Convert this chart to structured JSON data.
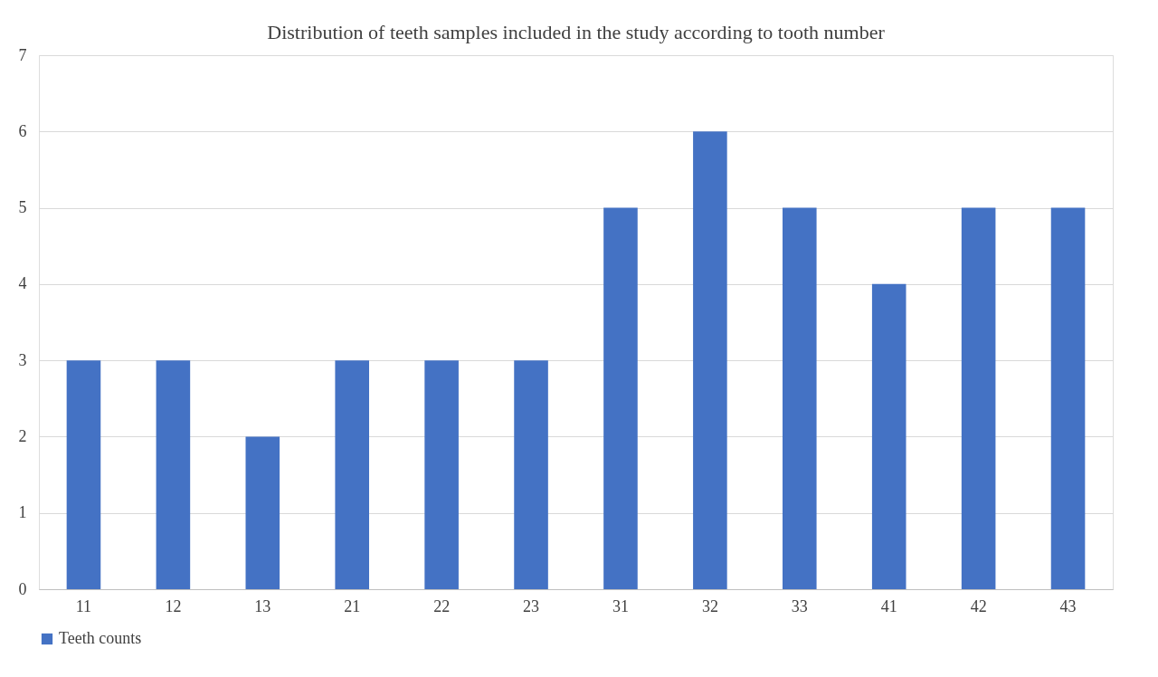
{
  "chart_data": {
    "type": "bar",
    "title": "Distribution of teeth samples included in the study according to tooth number",
    "categories": [
      "11",
      "12",
      "13",
      "21",
      "22",
      "23",
      "31",
      "32",
      "33",
      "41",
      "42",
      "43"
    ],
    "series": [
      {
        "name": "Teeth counts",
        "color": "#4472c4",
        "values": [
          3,
          3,
          2,
          3,
          3,
          3,
          5,
          6,
          5,
          4,
          5,
          5
        ]
      }
    ],
    "ylim": [
      0,
      7
    ],
    "yticks": [
      0,
      1,
      2,
      3,
      4,
      5,
      6,
      7
    ],
    "grid": "y",
    "legend": "bottom"
  }
}
